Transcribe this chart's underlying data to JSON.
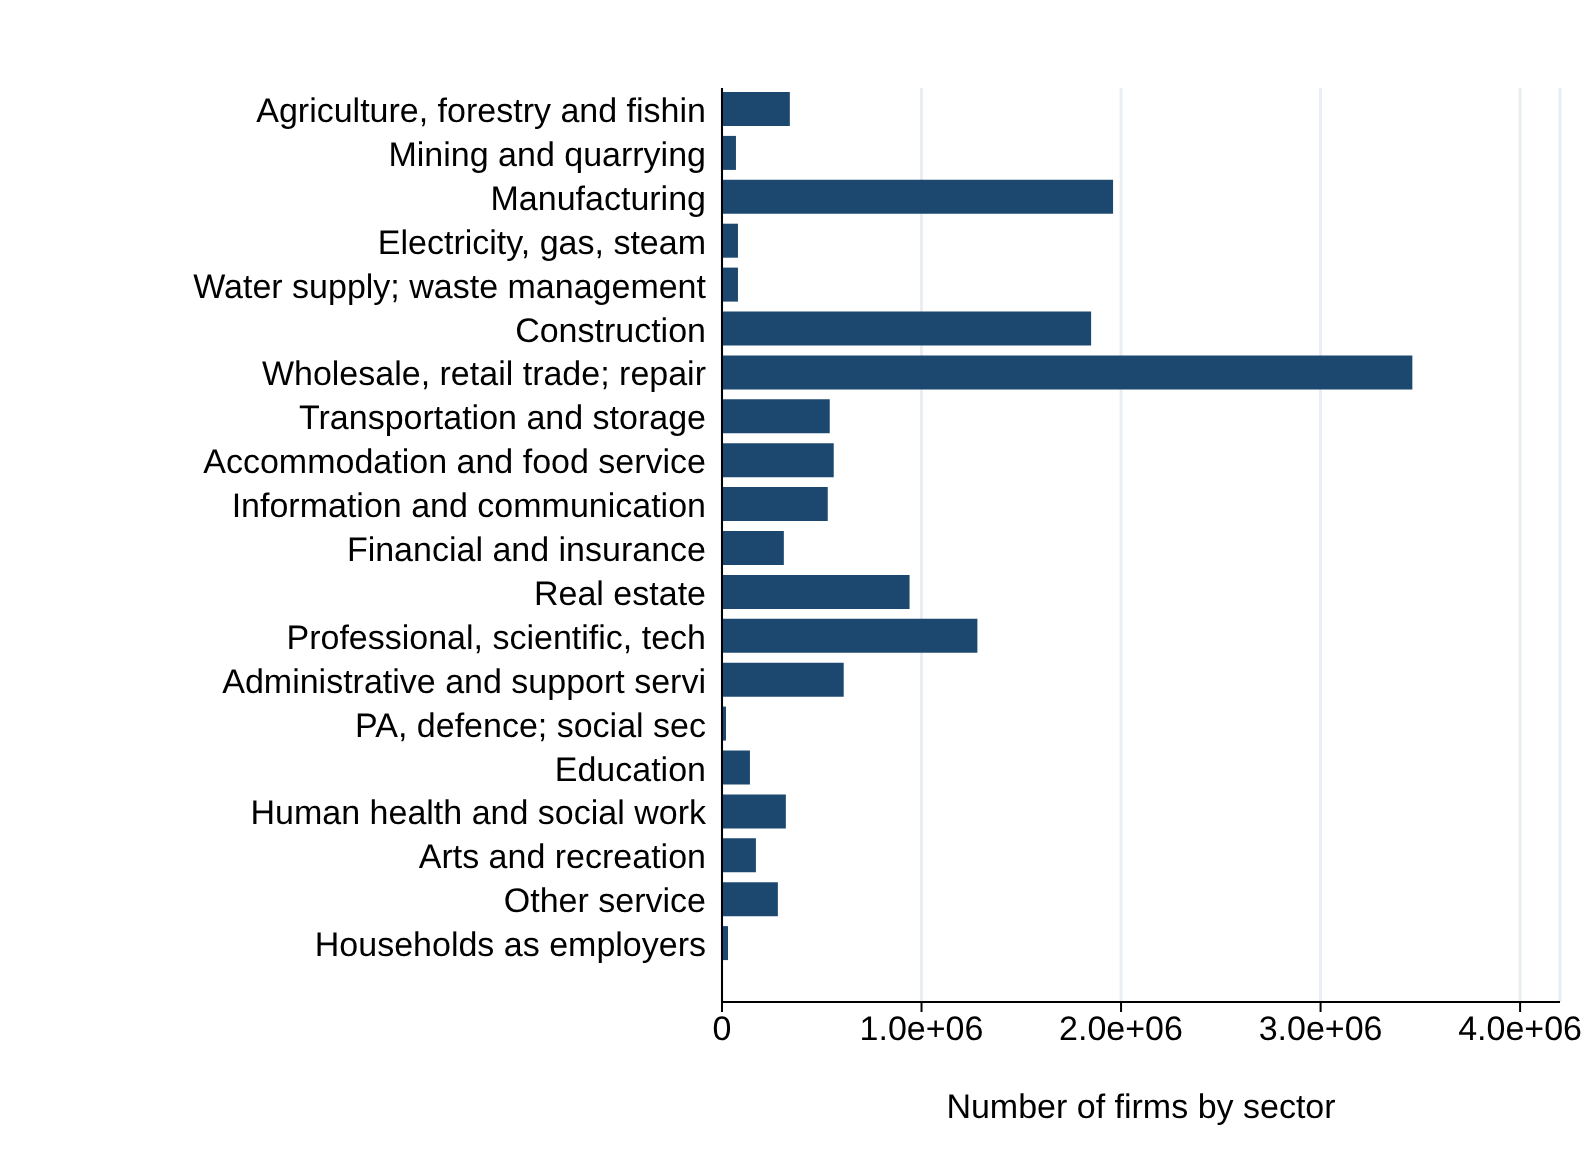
{
  "chart_data": {
    "type": "bar",
    "orientation": "horizontal",
    "xlabel": "Number of firms by sector",
    "categories": [
      "Agriculture, forestry and fishin",
      "Mining and quarrying",
      "Manufacturing",
      "Electricity, gas, steam",
      "Water supply; waste management",
      "Construction",
      "Wholesale, retail trade; repair",
      "Transportation and storage",
      "Accommodation and food service",
      "Information and communication",
      "Financial and insurance",
      "Real estate",
      "Professional, scientific, tech",
      "Administrative and support servi",
      "PA, defence; social sec",
      "Education",
      "Human health and social work",
      "Arts and recreation",
      "Other service",
      "Households as employers"
    ],
    "values": [
      340000,
      70000,
      1960000,
      80000,
      80000,
      1850000,
      3460000,
      540000,
      560000,
      530000,
      310000,
      940000,
      1280000,
      610000,
      20000,
      140000,
      320000,
      170000,
      280000,
      30000
    ],
    "color": "#1c4870",
    "xlim": [
      0,
      4200000
    ],
    "xticks": [
      0,
      {
        "value": 1000000,
        "label": "1.0e+06"
      },
      {
        "value": 2000000,
        "label": "2.0e+06"
      },
      {
        "value": 3000000,
        "label": "3.0e+06"
      },
      {
        "value": 4000000,
        "label": "4.0e+06"
      }
    ],
    "grid": "x"
  }
}
